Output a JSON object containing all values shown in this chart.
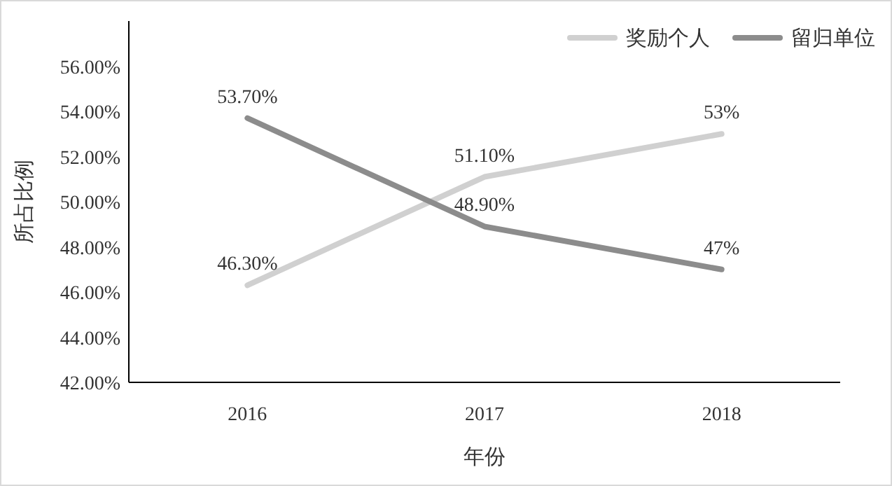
{
  "chart_data": {
    "type": "line",
    "xlabel": "年份",
    "ylabel": "所占比例",
    "categories": [
      "2016",
      "2017",
      "2018"
    ],
    "series": [
      {
        "name": "奖励个人",
        "color": "#d0d0d0",
        "values": [
          46.3,
          51.1,
          53
        ],
        "value_labels": [
          "46.30%",
          "51.10%",
          "53%"
        ]
      },
      {
        "name": "留归单位",
        "color": "#8c8c8c",
        "values": [
          53.7,
          48.9,
          47
        ],
        "value_labels": [
          "53.70%",
          "48.90%",
          "47%"
        ]
      }
    ],
    "ylim": [
      42,
      58
    ],
    "yticks": [
      {
        "value": 42,
        "label": "42.00%"
      },
      {
        "value": 44,
        "label": "44.00%"
      },
      {
        "value": 46,
        "label": "46.00%"
      },
      {
        "value": 48,
        "label": "48.00%"
      },
      {
        "value": 50,
        "label": "50.00%"
      },
      {
        "value": 52,
        "label": "52.00%"
      },
      {
        "value": 54,
        "label": "54.00%"
      },
      {
        "value": 56,
        "label": "56.00%"
      }
    ],
    "grid": false,
    "legend": "top right",
    "marker": "none",
    "line_style": "solid"
  }
}
